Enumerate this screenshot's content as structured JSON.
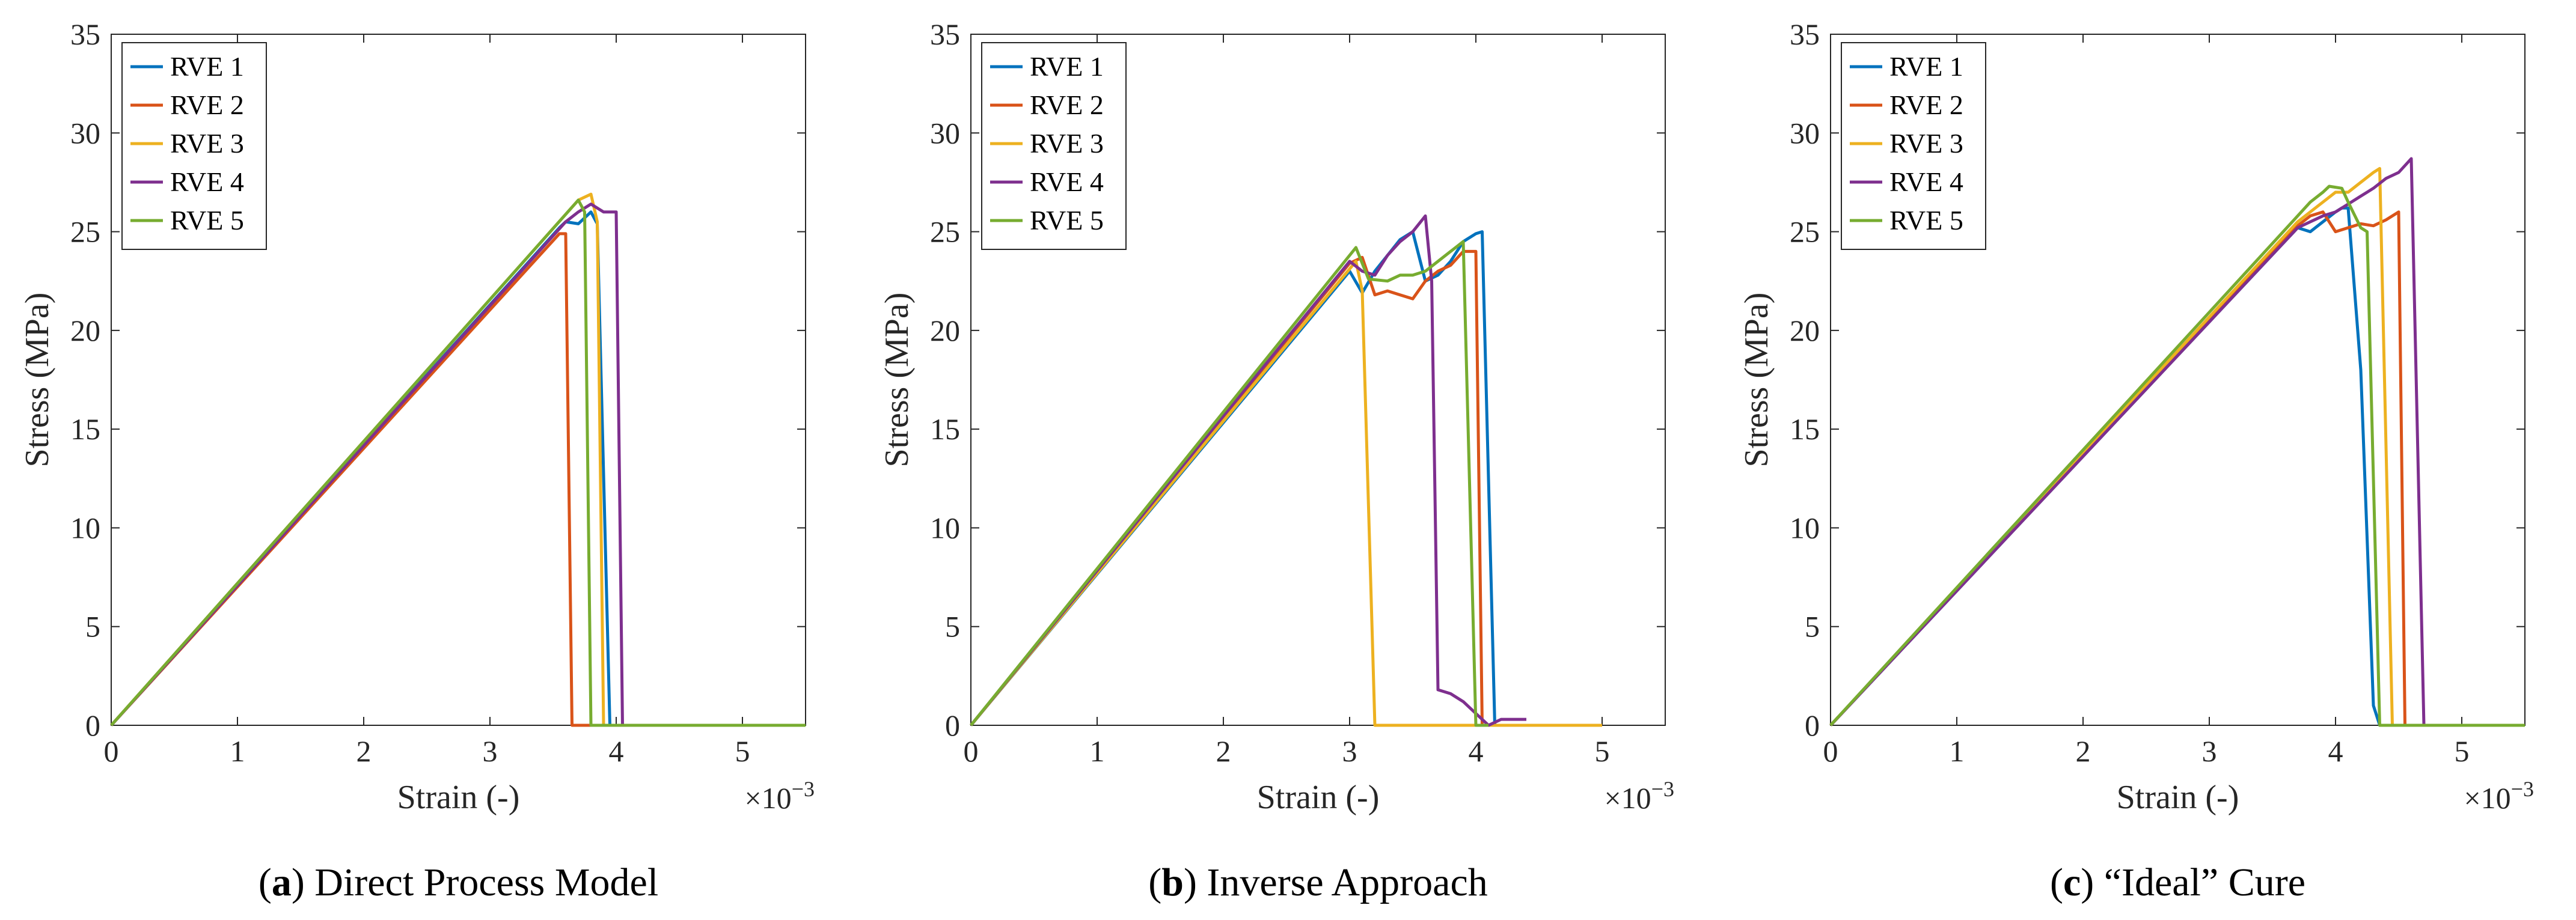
{
  "chart_data": [
    {
      "type": "line",
      "caption": {
        "letter": "a",
        "open": "(",
        "close": ")",
        "title": " Direct Process Model"
      },
      "xlabel": "Strain (-)",
      "ylabel": "Stress (MPa)",
      "x_multiplier": {
        "base": "×10",
        "exponent": "−3"
      },
      "xlim": [
        0,
        5.5
      ],
      "ylim": [
        0,
        35
      ],
      "xticks": [
        0,
        1,
        2,
        3,
        4,
        5
      ],
      "yticks": [
        0,
        5,
        10,
        15,
        20,
        25,
        30,
        35
      ],
      "legend_position": "top-left",
      "series": [
        {
          "name": "RVE 1",
          "color": "#0072BD",
          "x": [
            0,
            3.55,
            3.6,
            3.7,
            3.8,
            3.85,
            3.95,
            5.5
          ],
          "y": [
            0,
            25.2,
            25.5,
            25.4,
            26.0,
            25.4,
            0,
            0
          ]
        },
        {
          "name": "RVE 2",
          "color": "#D95319",
          "x": [
            0,
            3.55,
            3.6,
            3.65,
            5.5
          ],
          "y": [
            0,
            24.9,
            24.9,
            0,
            0
          ]
        },
        {
          "name": "RVE 3",
          "color": "#EDB120",
          "x": [
            0,
            3.7,
            3.8,
            3.85,
            3.9,
            5.5
          ],
          "y": [
            0,
            26.6,
            26.9,
            25.5,
            0,
            0
          ]
        },
        {
          "name": "RVE 4",
          "color": "#7E2F8E",
          "x": [
            0,
            3.6,
            3.7,
            3.8,
            3.9,
            4.0,
            4.05,
            5.5
          ],
          "y": [
            0,
            25.5,
            26.0,
            26.4,
            26.0,
            26.0,
            0,
            0
          ]
        },
        {
          "name": "RVE 5",
          "color": "#77AC30",
          "x": [
            0,
            3.7,
            3.75,
            3.8,
            5.5
          ],
          "y": [
            0,
            26.6,
            26.0,
            0,
            0
          ]
        }
      ]
    },
    {
      "type": "line",
      "caption": {
        "letter": "b",
        "open": "(",
        "close": ")",
        "title": " Inverse Approach"
      },
      "xlabel": "Strain (-)",
      "ylabel": "Stress (MPa)",
      "x_multiplier": {
        "base": "×10",
        "exponent": "−3"
      },
      "xlim": [
        0,
        5.5
      ],
      "ylim": [
        0,
        35
      ],
      "xticks": [
        0,
        1,
        2,
        3,
        4,
        5
      ],
      "yticks": [
        0,
        5,
        10,
        15,
        20,
        25,
        30,
        35
      ],
      "legend_position": "top-left",
      "series": [
        {
          "name": "RVE 1",
          "color": "#0072BD",
          "x": [
            0,
            3.0,
            3.1,
            3.2,
            3.3,
            3.4,
            3.5,
            3.6,
            3.7,
            3.8,
            3.9,
            4.0,
            4.05,
            4.15,
            4.2
          ],
          "y": [
            0,
            23.0,
            21.9,
            23.0,
            23.8,
            24.6,
            25.0,
            22.5,
            22.8,
            23.5,
            24.5,
            24.9,
            25.0,
            0,
            0
          ]
        },
        {
          "name": "RVE 2",
          "color": "#D95319",
          "x": [
            0,
            3.0,
            3.1,
            3.2,
            3.3,
            3.4,
            3.5,
            3.6,
            3.7,
            3.8,
            3.9,
            4.0,
            4.05,
            4.2,
            5.0
          ],
          "y": [
            0,
            23.4,
            23.7,
            21.8,
            22.0,
            21.8,
            21.6,
            22.5,
            23.0,
            23.3,
            24.0,
            24.0,
            0,
            0,
            0
          ]
        },
        {
          "name": "RVE 3",
          "color": "#EDB120",
          "x": [
            0,
            3.05,
            3.1,
            3.2,
            5.0
          ],
          "y": [
            0,
            23.5,
            22.0,
            0,
            0
          ]
        },
        {
          "name": "RVE 4",
          "color": "#7E2F8E",
          "x": [
            0,
            3.0,
            3.1,
            3.2,
            3.3,
            3.4,
            3.5,
            3.6,
            3.65,
            3.7,
            3.8,
            3.9,
            4.0,
            4.1,
            4.2,
            4.4
          ],
          "y": [
            0,
            23.5,
            23.0,
            22.8,
            23.8,
            24.5,
            25.0,
            25.8,
            22.5,
            1.8,
            1.6,
            1.2,
            0.6,
            0,
            0.3,
            0.3
          ]
        },
        {
          "name": "RVE 5",
          "color": "#77AC30",
          "x": [
            0,
            3.05,
            3.15,
            3.3,
            3.4,
            3.5,
            3.6,
            3.7,
            3.8,
            3.9,
            4.0,
            4.1
          ],
          "y": [
            0,
            24.2,
            22.6,
            22.5,
            22.8,
            22.8,
            23.0,
            23.5,
            24.0,
            24.5,
            0,
            0
          ]
        }
      ]
    },
    {
      "type": "line",
      "caption": {
        "letter": "c",
        "open": "(",
        "close": ")",
        "title": " “Ideal” Cure"
      },
      "xlabel": "Strain (-)",
      "ylabel": "Stress (MPa)",
      "x_multiplier": {
        "base": "×10",
        "exponent": "−3"
      },
      "xlim": [
        0,
        5.5
      ],
      "ylim": [
        0,
        35
      ],
      "xticks": [
        0,
        1,
        2,
        3,
        4,
        5
      ],
      "yticks": [
        0,
        5,
        10,
        15,
        20,
        25,
        30,
        35
      ],
      "legend_position": "top-left",
      "series": [
        {
          "name": "RVE 1",
          "color": "#0072BD",
          "x": [
            0,
            3.7,
            3.8,
            3.9,
            4.0,
            4.05,
            4.1,
            4.2,
            4.3,
            4.35,
            5.5
          ],
          "y": [
            0,
            25.2,
            25.0,
            25.5,
            26.0,
            26.2,
            26.2,
            18.0,
            1.0,
            0,
            0
          ]
        },
        {
          "name": "RVE 2",
          "color": "#D95319",
          "x": [
            0,
            3.7,
            3.8,
            3.9,
            4.0,
            4.1,
            4.2,
            4.3,
            4.4,
            4.5,
            4.55,
            5.5
          ],
          "y": [
            0,
            25.3,
            25.8,
            26.0,
            25.0,
            25.2,
            25.4,
            25.3,
            25.6,
            26.0,
            0,
            0
          ]
        },
        {
          "name": "RVE 3",
          "color": "#EDB120",
          "x": [
            0,
            3.7,
            3.8,
            3.9,
            4.0,
            4.1,
            4.2,
            4.3,
            4.35,
            4.45,
            5.5
          ],
          "y": [
            0,
            25.5,
            26.0,
            26.5,
            27.0,
            27.0,
            27.5,
            28.0,
            28.2,
            0,
            0
          ]
        },
        {
          "name": "RVE 4",
          "color": "#7E2F8E",
          "x": [
            0,
            3.7,
            3.8,
            3.9,
            4.0,
            4.1,
            4.2,
            4.3,
            4.4,
            4.5,
            4.6,
            4.7,
            5.5
          ],
          "y": [
            0,
            25.2,
            25.5,
            25.8,
            26.0,
            26.4,
            26.8,
            27.2,
            27.7,
            28.0,
            28.7,
            0,
            0
          ]
        },
        {
          "name": "RVE 5",
          "color": "#77AC30",
          "x": [
            0,
            3.7,
            3.8,
            3.9,
            3.95,
            4.05,
            4.1,
            4.2,
            4.25,
            4.35,
            5.5
          ],
          "y": [
            0,
            25.8,
            26.5,
            27.0,
            27.3,
            27.2,
            26.5,
            25.2,
            25.0,
            0,
            0
          ]
        }
      ]
    }
  ]
}
